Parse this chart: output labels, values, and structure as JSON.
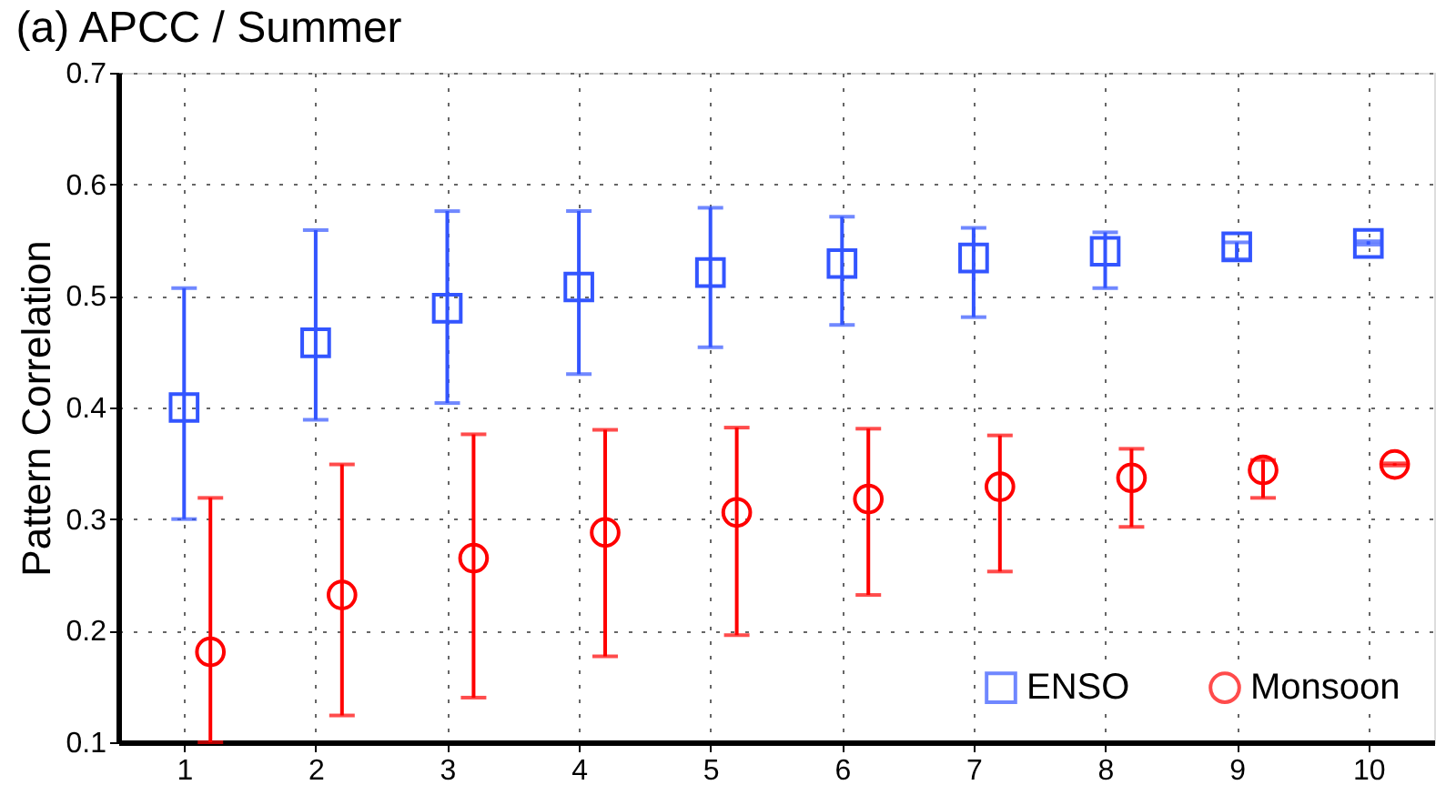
{
  "chart_data": {
    "type": "scatter",
    "title": "(a) APCC / Summer",
    "ylabel": "Pattern Correlation",
    "xlim": [
      0.5,
      10.5
    ],
    "xticks": [
      1,
      2,
      3,
      4,
      5,
      6,
      7,
      8,
      9,
      10
    ],
    "ylim": [
      0.1,
      0.7
    ],
    "yticks": [
      0.1,
      0.2,
      0.3,
      0.4,
      0.5,
      0.6,
      0.7
    ],
    "grid": true,
    "legend": "bottom right",
    "series": [
      {
        "name": "ENSO",
        "color": "#3355ff",
        "marker": "square",
        "x": [
          1,
          2,
          3,
          4,
          5,
          6,
          7,
          8,
          9,
          10
        ],
        "values": [
          0.4,
          0.458,
          0.489,
          0.508,
          0.521,
          0.529,
          0.534,
          0.54,
          0.544,
          0.547
        ],
        "errors": [
          [
            0.3,
            0.507
          ],
          [
            0.389,
            0.559
          ],
          [
            0.404,
            0.576
          ],
          [
            0.43,
            0.576
          ],
          [
            0.454,
            0.579
          ],
          [
            0.474,
            0.571
          ],
          [
            0.481,
            0.561
          ],
          [
            0.507,
            0.557
          ],
          [
            0.533,
            0.548
          ],
          [
            0.546,
            0.549
          ]
        ]
      },
      {
        "name": "Monsoon",
        "color": "#ff0000",
        "marker": "circle",
        "x": [
          1.2,
          2.2,
          3.2,
          4.2,
          5.2,
          6.2,
          7.2,
          8.2,
          9.2,
          10.2
        ],
        "values": [
          0.181,
          0.232,
          0.265,
          0.288,
          0.306,
          0.318,
          0.329,
          0.337,
          0.344,
          0.349
        ],
        "errors": [
          [
            0.1,
            0.319
          ],
          [
            0.124,
            0.349
          ],
          [
            0.14,
            0.376
          ],
          [
            0.177,
            0.38
          ],
          [
            0.196,
            0.382
          ],
          [
            0.232,
            0.381
          ],
          [
            0.253,
            0.375
          ],
          [
            0.293,
            0.363
          ],
          [
            0.319,
            0.353
          ],
          [
            0.348,
            0.35
          ]
        ]
      }
    ]
  }
}
